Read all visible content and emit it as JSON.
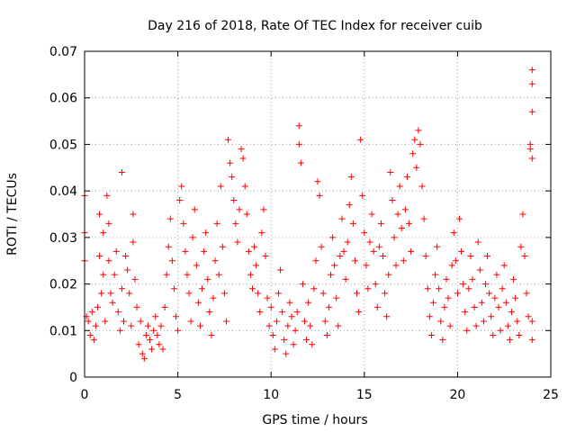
{
  "chart_data": {
    "type": "scatter",
    "title": "Day 216 of 2018, Rate Of TEC Index for receiver cuib",
    "xlabel": "GPS time / hours",
    "ylabel": "ROTI / TECUs",
    "xlim": [
      0,
      25
    ],
    "ylim": [
      0,
      0.07
    ],
    "x_ticks": [
      "0",
      "5",
      "10",
      "15",
      "20",
      "25"
    ],
    "y_ticks": [
      "0",
      "0.01",
      "0.02",
      "0.03",
      "0.04",
      "0.05",
      "0.06",
      "0.07"
    ],
    "grid": true,
    "legend": "none",
    "marker": "+",
    "color": "#ff0000",
    "points": [
      [
        0.0,
        0.039
      ],
      [
        0.0,
        0.031
      ],
      [
        0.0,
        0.025
      ],
      [
        0.1,
        0.013
      ],
      [
        0.2,
        0.012
      ],
      [
        0.3,
        0.009
      ],
      [
        0.4,
        0.014
      ],
      [
        0.5,
        0.008
      ],
      [
        0.6,
        0.011
      ],
      [
        0.7,
        0.015
      ],
      [
        0.8,
        0.026
      ],
      [
        0.8,
        0.035
      ],
      [
        0.9,
        0.018
      ],
      [
        1.0,
        0.031
      ],
      [
        1.0,
        0.022
      ],
      [
        1.1,
        0.012
      ],
      [
        1.2,
        0.039
      ],
      [
        1.3,
        0.033
      ],
      [
        1.3,
        0.025
      ],
      [
        1.4,
        0.018
      ],
      [
        1.5,
        0.016
      ],
      [
        1.6,
        0.022
      ],
      [
        1.7,
        0.027
      ],
      [
        1.8,
        0.014
      ],
      [
        1.9,
        0.01
      ],
      [
        2.0,
        0.044
      ],
      [
        2.0,
        0.019
      ],
      [
        2.1,
        0.012
      ],
      [
        2.2,
        0.026
      ],
      [
        2.3,
        0.023
      ],
      [
        2.4,
        0.018
      ],
      [
        2.5,
        0.011
      ],
      [
        2.6,
        0.035
      ],
      [
        2.6,
        0.029
      ],
      [
        2.7,
        0.021
      ],
      [
        2.8,
        0.015
      ],
      [
        2.9,
        0.007
      ],
      [
        3.0,
        0.012
      ],
      [
        3.1,
        0.005
      ],
      [
        3.2,
        0.004
      ],
      [
        3.3,
        0.009
      ],
      [
        3.4,
        0.011
      ],
      [
        3.5,
        0.008
      ],
      [
        3.6,
        0.006
      ],
      [
        3.7,
        0.01
      ],
      [
        3.8,
        0.013
      ],
      [
        3.9,
        0.009
      ],
      [
        4.0,
        0.007
      ],
      [
        4.1,
        0.011
      ],
      [
        4.2,
        0.006
      ],
      [
        4.3,
        0.015
      ],
      [
        4.4,
        0.022
      ],
      [
        4.5,
        0.028
      ],
      [
        4.6,
        0.034
      ],
      [
        4.7,
        0.025
      ],
      [
        4.8,
        0.019
      ],
      [
        4.9,
        0.013
      ],
      [
        5.0,
        0.01
      ],
      [
        5.1,
        0.038
      ],
      [
        5.2,
        0.041
      ],
      [
        5.3,
        0.033
      ],
      [
        5.4,
        0.027
      ],
      [
        5.5,
        0.022
      ],
      [
        5.6,
        0.018
      ],
      [
        5.7,
        0.012
      ],
      [
        5.8,
        0.03
      ],
      [
        5.9,
        0.036
      ],
      [
        6.0,
        0.024
      ],
      [
        6.1,
        0.016
      ],
      [
        6.2,
        0.011
      ],
      [
        6.3,
        0.019
      ],
      [
        6.4,
        0.027
      ],
      [
        6.5,
        0.031
      ],
      [
        6.6,
        0.021
      ],
      [
        6.7,
        0.014
      ],
      [
        6.8,
        0.009
      ],
      [
        6.9,
        0.017
      ],
      [
        7.0,
        0.025
      ],
      [
        7.1,
        0.033
      ],
      [
        7.2,
        0.022
      ],
      [
        7.3,
        0.041
      ],
      [
        7.4,
        0.028
      ],
      [
        7.5,
        0.018
      ],
      [
        7.6,
        0.012
      ],
      [
        7.7,
        0.051
      ],
      [
        7.8,
        0.046
      ],
      [
        7.9,
        0.043
      ],
      [
        8.0,
        0.038
      ],
      [
        8.1,
        0.033
      ],
      [
        8.2,
        0.029
      ],
      [
        8.3,
        0.036
      ],
      [
        8.4,
        0.049
      ],
      [
        8.5,
        0.047
      ],
      [
        8.6,
        0.041
      ],
      [
        8.7,
        0.035
      ],
      [
        8.8,
        0.027
      ],
      [
        8.9,
        0.022
      ],
      [
        9.0,
        0.019
      ],
      [
        9.1,
        0.028
      ],
      [
        9.2,
        0.024
      ],
      [
        9.3,
        0.018
      ],
      [
        9.4,
        0.014
      ],
      [
        9.5,
        0.031
      ],
      [
        9.6,
        0.036
      ],
      [
        9.7,
        0.026
      ],
      [
        9.8,
        0.017
      ],
      [
        9.9,
        0.011
      ],
      [
        10.0,
        0.015
      ],
      [
        10.1,
        0.009
      ],
      [
        10.2,
        0.006
      ],
      [
        10.3,
        0.012
      ],
      [
        10.4,
        0.018
      ],
      [
        10.5,
        0.023
      ],
      [
        10.6,
        0.014
      ],
      [
        10.7,
        0.008
      ],
      [
        10.8,
        0.005
      ],
      [
        10.9,
        0.011
      ],
      [
        11.0,
        0.016
      ],
      [
        11.1,
        0.013
      ],
      [
        11.2,
        0.007
      ],
      [
        11.3,
        0.01
      ],
      [
        11.4,
        0.014
      ],
      [
        11.5,
        0.054
      ],
      [
        11.5,
        0.05
      ],
      [
        11.6,
        0.046
      ],
      [
        11.7,
        0.02
      ],
      [
        11.8,
        0.012
      ],
      [
        11.9,
        0.008
      ],
      [
        12.0,
        0.016
      ],
      [
        12.1,
        0.011
      ],
      [
        12.2,
        0.007
      ],
      [
        12.3,
        0.019
      ],
      [
        12.4,
        0.025
      ],
      [
        12.5,
        0.042
      ],
      [
        12.6,
        0.039
      ],
      [
        12.7,
        0.028
      ],
      [
        12.8,
        0.018
      ],
      [
        12.9,
        0.012
      ],
      [
        13.0,
        0.009
      ],
      [
        13.1,
        0.015
      ],
      [
        13.2,
        0.022
      ],
      [
        13.3,
        0.03
      ],
      [
        13.4,
        0.024
      ],
      [
        13.5,
        0.017
      ],
      [
        13.6,
        0.011
      ],
      [
        13.7,
        0.026
      ],
      [
        13.8,
        0.034
      ],
      [
        13.9,
        0.027
      ],
      [
        14.0,
        0.021
      ],
      [
        14.1,
        0.029
      ],
      [
        14.2,
        0.037
      ],
      [
        14.3,
        0.043
      ],
      [
        14.4,
        0.033
      ],
      [
        14.5,
        0.025
      ],
      [
        14.6,
        0.018
      ],
      [
        14.7,
        0.014
      ],
      [
        14.8,
        0.051
      ],
      [
        14.9,
        0.039
      ],
      [
        15.0,
        0.031
      ],
      [
        15.1,
        0.024
      ],
      [
        15.2,
        0.019
      ],
      [
        15.3,
        0.029
      ],
      [
        15.4,
        0.035
      ],
      [
        15.5,
        0.027
      ],
      [
        15.6,
        0.02
      ],
      [
        15.7,
        0.015
      ],
      [
        15.8,
        0.028
      ],
      [
        15.9,
        0.033
      ],
      [
        16.0,
        0.026
      ],
      [
        16.1,
        0.018
      ],
      [
        16.2,
        0.013
      ],
      [
        16.3,
        0.022
      ],
      [
        16.4,
        0.044
      ],
      [
        16.5,
        0.038
      ],
      [
        16.6,
        0.03
      ],
      [
        16.7,
        0.024
      ],
      [
        16.8,
        0.035
      ],
      [
        16.9,
        0.041
      ],
      [
        17.0,
        0.032
      ],
      [
        17.1,
        0.025
      ],
      [
        17.2,
        0.036
      ],
      [
        17.3,
        0.043
      ],
      [
        17.4,
        0.033
      ],
      [
        17.5,
        0.027
      ],
      [
        17.6,
        0.048
      ],
      [
        17.7,
        0.051
      ],
      [
        17.8,
        0.045
      ],
      [
        17.9,
        0.053
      ],
      [
        18.0,
        0.05
      ],
      [
        18.1,
        0.041
      ],
      [
        18.2,
        0.034
      ],
      [
        18.3,
        0.026
      ],
      [
        18.4,
        0.019
      ],
      [
        18.5,
        0.013
      ],
      [
        18.6,
        0.009
      ],
      [
        18.7,
        0.016
      ],
      [
        18.8,
        0.022
      ],
      [
        18.9,
        0.028
      ],
      [
        19.0,
        0.019
      ],
      [
        19.1,
        0.012
      ],
      [
        19.2,
        0.008
      ],
      [
        19.3,
        0.015
      ],
      [
        19.4,
        0.021
      ],
      [
        19.5,
        0.017
      ],
      [
        19.6,
        0.011
      ],
      [
        19.7,
        0.024
      ],
      [
        19.8,
        0.031
      ],
      [
        19.9,
        0.025
      ],
      [
        20.0,
        0.018
      ],
      [
        20.1,
        0.034
      ],
      [
        20.2,
        0.027
      ],
      [
        20.3,
        0.02
      ],
      [
        20.4,
        0.014
      ],
      [
        20.5,
        0.01
      ],
      [
        20.6,
        0.019
      ],
      [
        20.7,
        0.026
      ],
      [
        20.8,
        0.021
      ],
      [
        20.9,
        0.015
      ],
      [
        21.0,
        0.011
      ],
      [
        21.1,
        0.029
      ],
      [
        21.2,
        0.023
      ],
      [
        21.3,
        0.016
      ],
      [
        21.4,
        0.012
      ],
      [
        21.5,
        0.02
      ],
      [
        21.6,
        0.026
      ],
      [
        21.7,
        0.018
      ],
      [
        21.8,
        0.013
      ],
      [
        21.9,
        0.009
      ],
      [
        22.0,
        0.017
      ],
      [
        22.1,
        0.022
      ],
      [
        22.2,
        0.015
      ],
      [
        22.3,
        0.01
      ],
      [
        22.4,
        0.019
      ],
      [
        22.5,
        0.024
      ],
      [
        22.6,
        0.016
      ],
      [
        22.7,
        0.011
      ],
      [
        22.8,
        0.008
      ],
      [
        22.9,
        0.014
      ],
      [
        23.0,
        0.021
      ],
      [
        23.1,
        0.017
      ],
      [
        23.2,
        0.012
      ],
      [
        23.3,
        0.009
      ],
      [
        23.4,
        0.028
      ],
      [
        23.5,
        0.035
      ],
      [
        23.6,
        0.026
      ],
      [
        23.7,
        0.018
      ],
      [
        23.8,
        0.013
      ],
      [
        23.9,
        0.05
      ],
      [
        23.9,
        0.049
      ],
      [
        24.0,
        0.047
      ],
      [
        24.0,
        0.057
      ],
      [
        24.0,
        0.063
      ],
      [
        24.0,
        0.066
      ],
      [
        24.0,
        0.012
      ],
      [
        24.0,
        0.008
      ]
    ]
  }
}
